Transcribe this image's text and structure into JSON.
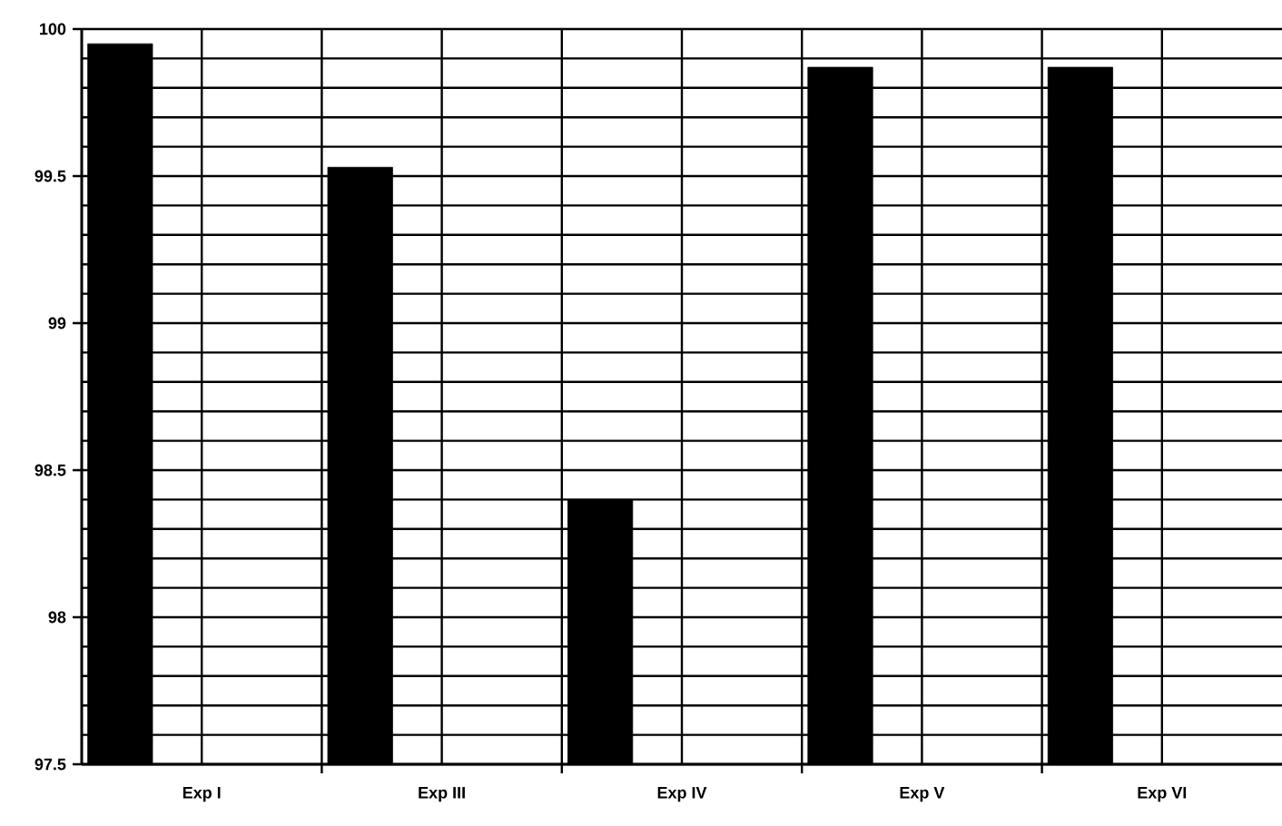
{
  "chart_data": {
    "type": "bar",
    "categories": [
      "Exp I",
      "Exp III",
      "Exp IV",
      "Exp V",
      "Exp VI"
    ],
    "values": [
      99.95,
      99.53,
      98.4,
      99.87,
      99.87
    ],
    "color": "#000000",
    "ylim": [
      97.5,
      100
    ],
    "yticks": [
      97.5,
      98,
      98.5,
      99,
      99.5,
      100
    ],
    "grid": true
  }
}
